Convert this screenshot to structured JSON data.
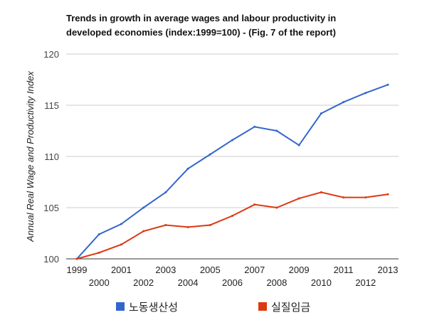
{
  "chart_data": {
    "type": "line",
    "title_lines": [
      "Trends in growth in average wages and labour productivity in",
      "developed economies (index:1999=100) - (Fig. 7 of the report)"
    ],
    "xlabel": "",
    "ylabel": "Annual Real Wage and Productivity Index",
    "x": [
      1999,
      2000,
      2001,
      2002,
      2003,
      2004,
      2005,
      2006,
      2007,
      2008,
      2009,
      2010,
      2011,
      2012,
      2013
    ],
    "x_tick_labels": [
      "1999",
      "2000",
      "2001",
      "2002",
      "2003",
      "2004",
      "2005",
      "2006",
      "2007",
      "2008",
      "2009",
      "2010",
      "2011",
      "2012",
      "2013"
    ],
    "y_ticks": [
      100,
      105,
      110,
      115,
      120
    ],
    "y_tick_labels": [
      "100",
      "105",
      "110",
      "115",
      "120"
    ],
    "ylim": [
      100,
      120
    ],
    "grid": true,
    "legend_position": "bottom",
    "series": [
      {
        "name": "노동생산성",
        "color": "#3366cc",
        "values": [
          100,
          102.4,
          103.4,
          105.0,
          106.5,
          108.8,
          110.2,
          111.6,
          112.9,
          112.5,
          111.1,
          114.2,
          115.3,
          116.2,
          117.0
        ]
      },
      {
        "name": "실질임금",
        "color": "#dc3912",
        "values": [
          100,
          100.6,
          101.4,
          102.7,
          103.3,
          103.1,
          103.3,
          104.2,
          105.3,
          105.0,
          105.9,
          106.5,
          106.0,
          106.0,
          106.3
        ]
      }
    ]
  }
}
